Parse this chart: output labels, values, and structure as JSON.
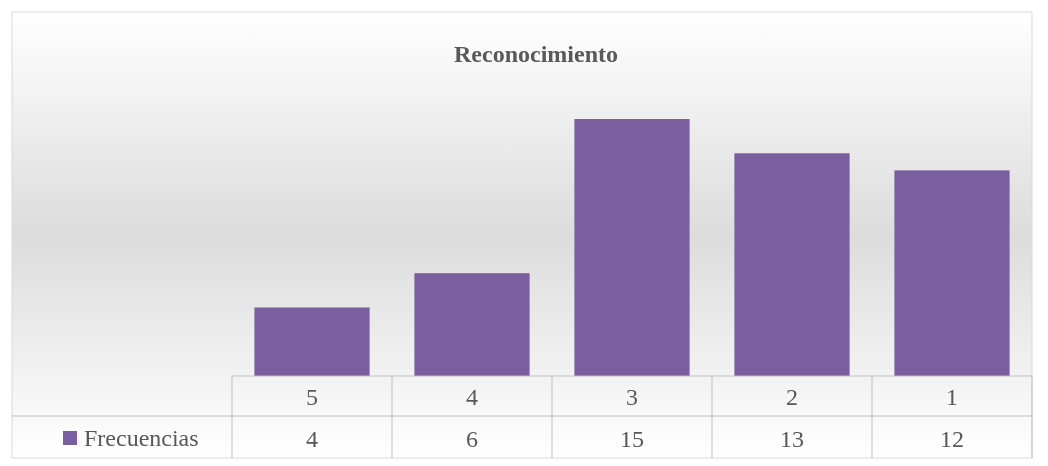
{
  "chart_data": {
    "type": "bar",
    "title": "Reconocimiento",
    "categories": [
      "5",
      "4",
      "3",
      "2",
      "1"
    ],
    "series": [
      {
        "name": "Frecuencias",
        "color": "#7b5e9f",
        "values": [
          4,
          6,
          15,
          13,
          12
        ]
      }
    ],
    "data_labels": true,
    "legend": "bottom left"
  }
}
